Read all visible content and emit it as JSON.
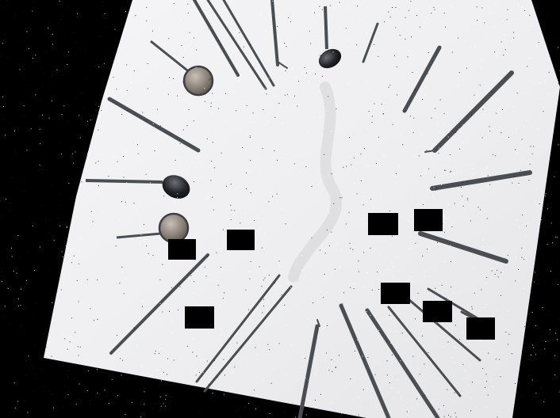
{
  "scene": {
    "subject": "dental-instruments-flat-lay",
    "background_color": "#000000",
    "paper_color": "#f3f3f4",
    "instrument_color": "#4a4d52",
    "mirror_color": "#8a8278",
    "redaction_color": "#000000",
    "redaction_count": 9,
    "instrument_count": 22,
    "noise": "salt-and-pepper"
  }
}
